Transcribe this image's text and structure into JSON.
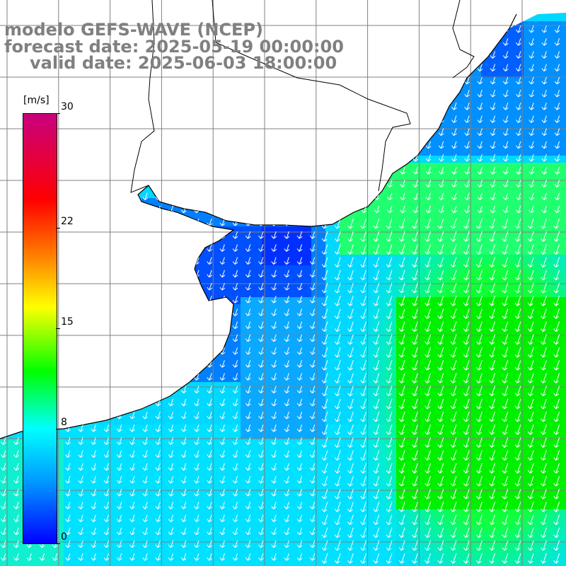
{
  "title": {
    "model": "modelo GEFS-WAVE (NCEP)",
    "forecast": "forecast date: 2025-05-19 00:00:00",
    "valid": "valid date: 2025-06-03 18:00:00"
  },
  "colorbar": {
    "unit": "[m/s]",
    "ticks": [
      "30",
      "22",
      "15",
      "8",
      "0"
    ],
    "tick_values": [
      30,
      22,
      15,
      8,
      0
    ],
    "colors": [
      "#0000ff",
      "#0096ff",
      "#00ffff",
      "#00ff00",
      "#ffff00",
      "#ff7f00",
      "#ff0000",
      "#c8007f"
    ]
  },
  "map": {
    "variable": "wind speed and direction",
    "land_color": "#ffffff",
    "grid_color": "#808080",
    "arrow_color": "#ffffff",
    "dominant_wind_direction": "from north-east toward south-west"
  }
}
